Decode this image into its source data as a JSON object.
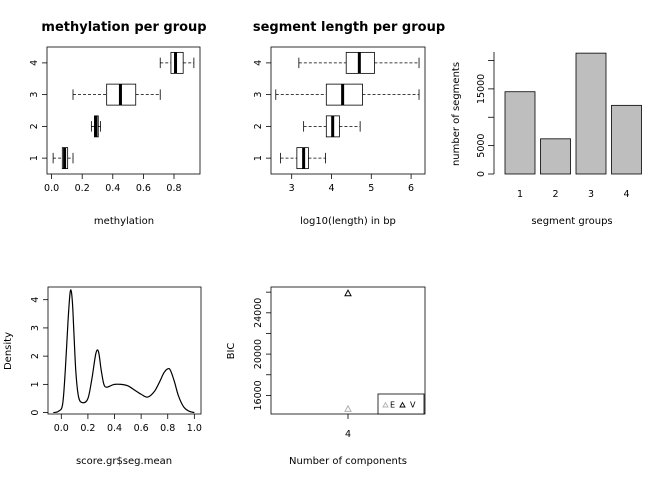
{
  "chart_data": [
    {
      "type": "boxplot",
      "orientation": "horizontal",
      "title": "methylation per group",
      "xlabel": "methylation",
      "ylabel": "",
      "xlim": [
        -0.03,
        0.97
      ],
      "xticks": [
        "0.0",
        "0.2",
        "0.4",
        "0.6",
        "0.8"
      ],
      "categories": [
        "1",
        "2",
        "3",
        "4"
      ],
      "boxes": [
        {
          "group": "1",
          "whisker_low": 0.01,
          "q1": 0.07,
          "median": 0.085,
          "q3": 0.105,
          "whisker_high": 0.14
        },
        {
          "group": "2",
          "whisker_low": 0.26,
          "q1": 0.28,
          "median": 0.29,
          "q3": 0.305,
          "whisker_high": 0.32
        },
        {
          "group": "3",
          "whisker_low": 0.14,
          "q1": 0.36,
          "median": 0.45,
          "q3": 0.55,
          "whisker_high": 0.71
        },
        {
          "group": "4",
          "whisker_low": 0.71,
          "q1": 0.78,
          "median": 0.81,
          "q3": 0.86,
          "whisker_high": 0.93
        }
      ]
    },
    {
      "type": "boxplot",
      "orientation": "horizontal",
      "title": "segment length per group",
      "xlabel": "log10(length) in bp",
      "ylabel": "",
      "xlim": [
        2.48,
        6.35
      ],
      "xticks": [
        "3",
        "4",
        "5",
        "6"
      ],
      "categories": [
        "1",
        "2",
        "3",
        "4"
      ],
      "boxes": [
        {
          "group": "1",
          "whisker_low": 2.72,
          "q1": 3.13,
          "median": 3.3,
          "q3": 3.42,
          "whisker_high": 3.85
        },
        {
          "group": "2",
          "whisker_low": 3.3,
          "q1": 3.87,
          "median": 4.03,
          "q3": 4.2,
          "whisker_high": 4.72
        },
        {
          "group": "3",
          "whisker_low": 2.6,
          "q1": 3.87,
          "median": 4.28,
          "q3": 4.78,
          "whisker_high": 6.2
        },
        {
          "group": "4",
          "whisker_low": 3.18,
          "q1": 4.37,
          "median": 4.7,
          "q3": 5.08,
          "whisker_high": 6.2
        }
      ]
    },
    {
      "type": "bar",
      "title": "",
      "xlabel": "segment groups",
      "ylabel": "number of segments",
      "categories": [
        "1",
        "2",
        "3",
        "4"
      ],
      "values": [
        14500,
        6200,
        21300,
        12100
      ],
      "ylim": [
        0,
        21500
      ],
      "yticks": [
        "0",
        "5000",
        "15000"
      ],
      "bar_color": "#bebebe"
    },
    {
      "type": "line",
      "title": "",
      "xlabel": "score.gr$seg.mean",
      "ylabel": "Density",
      "xlim": [
        -0.1,
        1.05
      ],
      "ylim": [
        -0.05,
        4.45
      ],
      "xticks": [
        "0.0",
        "0.2",
        "0.4",
        "0.6",
        "0.8",
        "1.0"
      ],
      "yticks": [
        "0",
        "1",
        "2",
        "3",
        "4"
      ],
      "x": [
        -0.06,
        -0.02,
        0.01,
        0.03,
        0.05,
        0.065,
        0.075,
        0.085,
        0.095,
        0.11,
        0.13,
        0.16,
        0.2,
        0.23,
        0.26,
        0.28,
        0.3,
        0.32,
        0.34,
        0.37,
        0.4,
        0.45,
        0.5,
        0.55,
        0.6,
        0.65,
        0.7,
        0.74,
        0.77,
        0.8,
        0.82,
        0.85,
        0.88,
        0.92,
        0.96,
        1.0
      ],
      "y": [
        0.0,
        0.05,
        0.3,
        1.5,
        3.2,
        4.2,
        4.3,
        3.8,
        2.8,
        1.4,
        0.55,
        0.35,
        0.5,
        1.2,
        2.1,
        2.15,
        1.5,
        1.0,
        0.9,
        0.95,
        1.0,
        1.0,
        0.95,
        0.8,
        0.65,
        0.55,
        0.75,
        1.1,
        1.4,
        1.55,
        1.5,
        1.1,
        0.6,
        0.2,
        0.05,
        0.0
      ]
    },
    {
      "type": "scatter",
      "title": "",
      "xlabel": "Number of components",
      "ylabel": "BIC",
      "xticks": [
        "4"
      ],
      "yticks": [
        "16000",
        "20000",
        "24000"
      ],
      "ylim": [
        14200,
        26500
      ],
      "series": [
        {
          "name": "E",
          "x": [
            4
          ],
          "y": [
            14700
          ],
          "marker": "triangle",
          "color": "#b0b0b0"
        },
        {
          "name": "V",
          "x": [
            4
          ],
          "y": [
            25900
          ],
          "marker": "triangle",
          "color": "#000000"
        }
      ],
      "legend": "bottom-right"
    }
  ]
}
